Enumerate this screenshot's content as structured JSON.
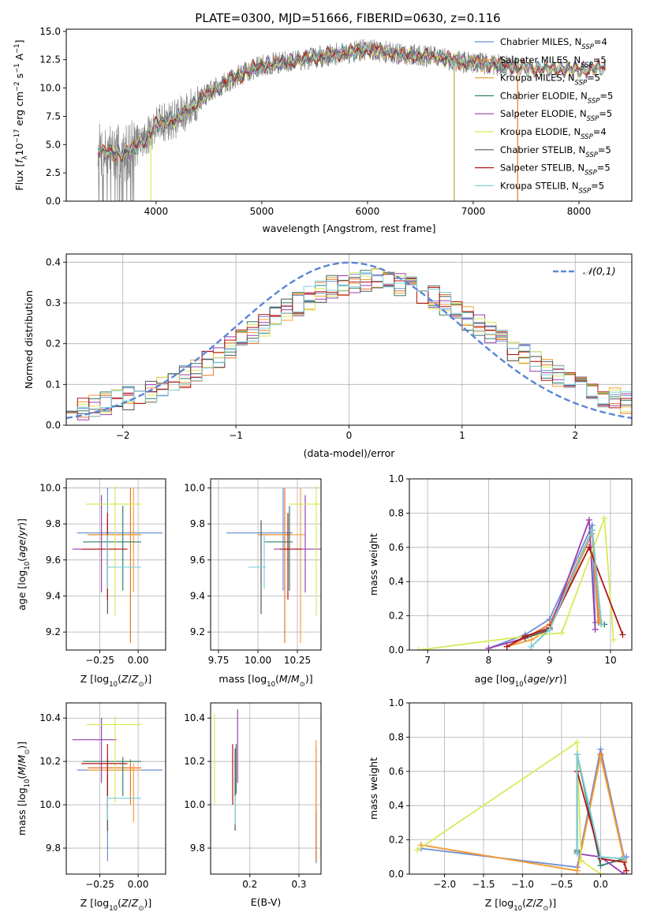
{
  "figure": {
    "title": "PLATE=0300, MJD=51666, FIBERID=0630, z=0.116"
  },
  "models": [
    {
      "name": "Chabrier MILES",
      "nssp": "4",
      "color": "#6b8fd6"
    },
    {
      "name": "Salpeter MILES",
      "nssp": "5",
      "color": "#e8742a"
    },
    {
      "name": "Kroupa MILES",
      "nssp": "5",
      "color": "#f2a03a"
    },
    {
      "name": "Chabrier ELODIE",
      "nssp": "5",
      "color": "#2f7f6a"
    },
    {
      "name": "Salpeter ELODIE",
      "nssp": "5",
      "color": "#9a3fb0"
    },
    {
      "name": "Kroupa ELODIE",
      "nssp": "4",
      "color": "#d8ea5a"
    },
    {
      "name": "Chabrier STELIB",
      "nssp": "5",
      "color": "#555555"
    },
    {
      "name": "Salpeter STELIB",
      "nssp": "5",
      "color": "#b01515"
    },
    {
      "name": "Kroupa STELIB",
      "nssp": "5",
      "color": "#7fd0dc"
    }
  ],
  "chart_data": [
    {
      "id": "spectrum",
      "type": "line",
      "xlabel": "wavelength [Angstrom, rest frame]",
      "ylabel": "Flux [f_λ10^-17 erg cm^-2 s^-1 A^-1]",
      "xlim": [
        3150,
        8500
      ],
      "ylim": [
        0,
        15.2
      ],
      "xticks": [
        4000,
        5000,
        6000,
        7000,
        8000
      ],
      "yticks": [
        0.0,
        2.5,
        5.0,
        7.5,
        10.0,
        12.5,
        15.0
      ],
      "grid": false,
      "legend": "right",
      "data_color": "#808080",
      "data_range": [
        3450,
        7420
      ],
      "model_range": [
        3450,
        8250
      ],
      "continuum": [
        [
          3450,
          4.4
        ],
        [
          3700,
          4.2
        ],
        [
          3900,
          5.5
        ],
        [
          4000,
          6.8
        ],
        [
          4200,
          7.3
        ],
        [
          4500,
          9.6
        ],
        [
          4800,
          11.2
        ],
        [
          5000,
          12.0
        ],
        [
          5300,
          12.4
        ],
        [
          5700,
          13.0
        ],
        [
          6000,
          13.4
        ],
        [
          6300,
          13.0
        ],
        [
          6600,
          12.8
        ],
        [
          6900,
          12.3
        ],
        [
          7200,
          12.1
        ],
        [
          7500,
          11.8
        ],
        [
          8000,
          11.6
        ],
        [
          8250,
          11.8
        ]
      ],
      "drops": [
        3950,
        6820,
        7420
      ]
    },
    {
      "id": "residuals",
      "type": "line",
      "xlabel": "(data-model)/error",
      "ylabel": "Normed distribution",
      "xlim": [
        -2.5,
        2.5
      ],
      "ylim": [
        0,
        0.42
      ],
      "xticks": [
        -2,
        -1,
        0,
        1,
        2
      ],
      "yticks": [
        0.0,
        0.1,
        0.2,
        0.3,
        0.4
      ],
      "grid": true,
      "legend": "top-right",
      "gaussian_label": "𝒩(0,1)",
      "gaussian_color": "#5a86d6",
      "bin_width": 0.1
    },
    {
      "id": "age-vs-Z",
      "type": "scatter",
      "xlabel": "Z [log10(Z/Z⊙)]",
      "ylabel": "age [log10(age/yr)]",
      "xlim": [
        -0.47,
        0.18
      ],
      "ylim": [
        9.1,
        10.05
      ],
      "xticks": [
        -0.25,
        0.0
      ],
      "yticks": [
        9.2,
        9.4,
        9.6,
        9.8,
        10.0
      ],
      "grid": true,
      "points": [
        {
          "x": -0.2,
          "xerr": [
            0.2,
            0.36
          ],
          "y": 9.75,
          "yerr": [
            0.32,
            0.25
          ]
        },
        {
          "x": -0.05,
          "xerr": [
            0.28,
            0.07
          ],
          "y": 9.74,
          "yerr": [
            0.6,
            0.26
          ]
        },
        {
          "x": -0.03,
          "xerr": [
            0.3,
            0.05
          ],
          "y": 9.74,
          "yerr": [
            0.32,
            0.26
          ]
        },
        {
          "x": -0.1,
          "xerr": [
            0.26,
            0.12
          ],
          "y": 9.7,
          "yerr": [
            0.27,
            0.2
          ]
        },
        {
          "x": -0.24,
          "xerr": [
            0.19,
            0.1
          ],
          "y": 9.66,
          "yerr": [
            0.24,
            0.3
          ]
        },
        {
          "x": -0.15,
          "xerr": [
            0.19,
            0.17
          ],
          "y": 9.91,
          "yerr": [
            0.62,
            0.1
          ]
        },
        {
          "x": -0.2,
          "xerr": [
            0.0,
            0.0
          ],
          "y": 9.58,
          "yerr": [
            0.28,
            0.24
          ]
        },
        {
          "x": -0.2,
          "xerr": [
            0.17,
            0.13
          ],
          "y": 9.66,
          "yerr": [
            0.28,
            0.2
          ]
        },
        {
          "x": -0.2,
          "xerr": [
            0.0,
            0.22
          ],
          "y": 9.56,
          "yerr": [
            0.12,
            0.18
          ]
        }
      ]
    },
    {
      "id": "age-vs-mass",
      "type": "scatter",
      "xlabel": "mass [log10(M/M⊙)]",
      "ylabel": "",
      "xlim": [
        9.7,
        10.4
      ],
      "ylim": [
        9.1,
        10.05
      ],
      "xticks": [
        9.75,
        10.0,
        10.25
      ],
      "yticks": [
        9.2,
        9.4,
        9.6,
        9.8,
        10.0
      ],
      "grid": true,
      "points": [
        {
          "x": 10.16,
          "xerr": [
            0.36,
            0.06
          ],
          "y": 9.75,
          "yerr": [
            0.32,
            0.25
          ]
        },
        {
          "x": 10.17,
          "xerr": [
            0.17,
            0.04
          ],
          "y": 9.74,
          "yerr": [
            0.6,
            0.26
          ]
        },
        {
          "x": 10.27,
          "xerr": [
            0.24,
            0.03
          ],
          "y": 9.74,
          "yerr": [
            0.6,
            0.26
          ]
        },
        {
          "x": 10.2,
          "xerr": [
            0.16,
            0.02
          ],
          "y": 9.7,
          "yerr": [
            0.27,
            0.2
          ]
        },
        {
          "x": 10.3,
          "xerr": [
            0.2,
            0.1
          ],
          "y": 9.66,
          "yerr": [
            0.24,
            0.3
          ]
        },
        {
          "x": 10.37,
          "xerr": [
            0.17,
            0.04
          ],
          "y": 9.91,
          "yerr": [
            0.62,
            0.1
          ]
        },
        {
          "x": 10.02,
          "xerr": [
            0.0,
            0.0
          ],
          "y": 9.58,
          "yerr": [
            0.28,
            0.24
          ]
        },
        {
          "x": 10.19,
          "xerr": [
            0.05,
            0.09
          ],
          "y": 9.66,
          "yerr": [
            0.28,
            0.2
          ]
        },
        {
          "x": 10.04,
          "xerr": [
            0.1,
            0.01
          ],
          "y": 9.56,
          "yerr": [
            0.12,
            0.18
          ]
        }
      ]
    },
    {
      "id": "massweight-vs-age",
      "type": "line",
      "xlabel": "age [log10(age/yr)]",
      "ylabel": "mass weight",
      "xlim": [
        6.7,
        10.35
      ],
      "ylim": [
        0,
        1.0
      ],
      "xticks": [
        7,
        8,
        9,
        10
      ],
      "yticks": [
        0.0,
        0.2,
        0.4,
        0.6,
        0.8,
        1.0
      ],
      "grid": true,
      "series": [
        {
          "x": [
            8.0,
            8.6,
            9.0,
            9.7,
            9.75
          ],
          "y": [
            0.01,
            0.09,
            0.18,
            0.73,
            0.16
          ]
        },
        {
          "x": [
            8.3,
            8.6,
            9.0,
            9.7,
            9.8
          ],
          "y": [
            0.02,
            0.07,
            0.15,
            0.7,
            0.16
          ]
        },
        {
          "x": [
            8.3,
            8.7,
            9.0,
            9.7,
            9.82
          ],
          "y": [
            0.02,
            0.06,
            0.12,
            0.68,
            0.17
          ]
        },
        {
          "x": [
            8.7,
            9.0,
            9.7,
            9.85,
            9.9
          ],
          "y": [
            0.02,
            0.12,
            0.7,
            0.15,
            0.15
          ]
        },
        {
          "x": [
            8.0,
            8.6,
            9.0,
            9.65,
            9.75
          ],
          "y": [
            0.01,
            0.07,
            0.12,
            0.76,
            0.12
          ]
        },
        {
          "x": [
            6.85,
            8.6,
            9.2,
            9.9,
            10.05
          ],
          "y": [
            0.0,
            0.08,
            0.1,
            0.77,
            0.06
          ]
        },
        {
          "x": [
            8.6,
            9.0,
            9.7,
            9.85
          ],
          "y": [
            0.07,
            0.12,
            0.7,
            0.15
          ]
        },
        {
          "x": [
            8.3,
            8.6,
            9.0,
            9.65,
            10.2
          ],
          "y": [
            0.02,
            0.08,
            0.13,
            0.6,
            0.09
          ]
        },
        {
          "x": [
            8.7,
            9.0,
            9.7,
            9.85
          ],
          "y": [
            0.02,
            0.12,
            0.7,
            0.15
          ]
        }
      ]
    },
    {
      "id": "mass-vs-Z",
      "type": "scatter",
      "xlabel": "Z [log10(Z/Z⊙)]",
      "ylabel": "mass [log10(M/M⊙)]",
      "xlim": [
        -0.47,
        0.18
      ],
      "ylim": [
        9.68,
        10.47
      ],
      "xticks": [
        -0.25,
        0.0
      ],
      "yticks": [
        9.8,
        10.0,
        10.2,
        10.4
      ],
      "grid": true,
      "points": [
        {
          "x": -0.2,
          "xerr": [
            0.2,
            0.36
          ],
          "y": 10.16,
          "yerr": [
            0.42,
            0.06
          ]
        },
        {
          "x": -0.05,
          "xerr": [
            0.28,
            0.07
          ],
          "y": 10.17,
          "yerr": [
            0.17,
            0.04
          ]
        },
        {
          "x": -0.03,
          "xerr": [
            0.3,
            0.05
          ],
          "y": 10.16,
          "yerr": [
            0.24,
            0.03
          ]
        },
        {
          "x": -0.1,
          "xerr": [
            0.26,
            0.12
          ],
          "y": 10.2,
          "yerr": [
            0.16,
            0.02
          ]
        },
        {
          "x": -0.24,
          "xerr": [
            0.19,
            0.1
          ],
          "y": 10.3,
          "yerr": [
            0.2,
            0.1
          ]
        },
        {
          "x": -0.15,
          "xerr": [
            0.19,
            0.17
          ],
          "y": 10.37,
          "yerr": [
            0.36,
            0.04
          ]
        },
        {
          "x": -0.2,
          "xerr": [
            0.0,
            0.0
          ],
          "y": 10.02,
          "yerr": [
            0.14,
            0.12
          ]
        },
        {
          "x": -0.2,
          "xerr": [
            0.17,
            0.13
          ],
          "y": 10.19,
          "yerr": [
            0.2,
            0.09
          ]
        },
        {
          "x": -0.2,
          "xerr": [
            0.0,
            0.22
          ],
          "y": 10.03,
          "yerr": [
            0.1,
            0.01
          ]
        }
      ]
    },
    {
      "id": "mass-vs-ebv",
      "type": "scatter",
      "xlabel": "E(B-V)",
      "ylabel": "",
      "xlim": [
        0.12,
        0.345
      ],
      "ylim": [
        9.68,
        10.47
      ],
      "xticks": [
        0.2,
        0.3
      ],
      "yticks": [
        9.8,
        10.0,
        10.2,
        10.4
      ],
      "grid": true,
      "points": [
        {
          "x": 0.335,
          "xerr": [
            0.0,
            0.0
          ],
          "y": 10.16,
          "yerr": [
            0.43,
            0.02
          ]
        },
        {
          "x": 0.335,
          "xerr": [
            0.0,
            0.0
          ],
          "y": 10.17,
          "yerr": [
            0.43,
            0.1
          ]
        },
        {
          "x": 0.335,
          "xerr": [
            0.0,
            0.0
          ],
          "y": 10.27,
          "yerr": [
            0.3,
            0.03
          ]
        },
        {
          "x": 0.172,
          "xerr": [
            0.0,
            0.0
          ],
          "y": 10.2,
          "yerr": [
            0.15,
            0.08
          ]
        },
        {
          "x": 0.175,
          "xerr": [
            0.0,
            0.0
          ],
          "y": 10.3,
          "yerr": [
            0.2,
            0.14
          ]
        },
        {
          "x": 0.128,
          "xerr": [
            0.0,
            0.0
          ],
          "y": 10.2,
          "yerr": [
            0.2,
            0.22
          ]
        },
        {
          "x": 0.17,
          "xerr": [
            0.0,
            0.0
          ],
          "y": 10.1,
          "yerr": [
            0.22,
            0.16
          ]
        },
        {
          "x": 0.165,
          "xerr": [
            0.0,
            0.0
          ],
          "y": 10.2,
          "yerr": [
            0.2,
            0.08
          ]
        },
        {
          "x": 0.17,
          "xerr": [
            0.0,
            0.0
          ],
          "y": 10.03,
          "yerr": [
            0.12,
            0.01
          ]
        }
      ]
    },
    {
      "id": "massweight-vs-Z",
      "type": "line",
      "xlabel": "Z [log10(Z/Z⊙)]",
      "ylabel": "mass weight",
      "xlim": [
        -2.45,
        0.4
      ],
      "ylim": [
        0,
        1.0
      ],
      "xticks": [
        -2.0,
        -1.5,
        -1.0,
        -0.5,
        0.0
      ],
      "yticks": [
        0.0,
        0.2,
        0.4,
        0.6,
        0.8,
        1.0
      ],
      "grid": true,
      "series": [
        {
          "x": [
            -2.3,
            -0.3,
            0.0,
            0.3,
            0.33
          ],
          "y": [
            0.15,
            0.04,
            0.73,
            0.1,
            0.1
          ]
        },
        {
          "x": [
            -2.3,
            -0.3,
            0.0,
            0.3,
            0.33
          ],
          "y": [
            0.17,
            0.02,
            0.7,
            0.09,
            0.02
          ]
        },
        {
          "x": [
            -2.3,
            -0.3,
            0.0,
            0.3,
            0.33
          ],
          "y": [
            0.17,
            0.02,
            0.69,
            0.08,
            0.02
          ]
        },
        {
          "x": [
            -0.3,
            -0.3,
            0.0,
            0.3
          ],
          "y": [
            0.14,
            0.7,
            0.05,
            0.09
          ]
        },
        {
          "x": [
            -0.3,
            0.0,
            0.3
          ],
          "y": [
            0.12,
            0.1,
            0.0
          ]
        },
        {
          "x": [
            -2.35,
            -0.3,
            -0.25,
            0.0
          ],
          "y": [
            0.14,
            0.77,
            0.08,
            0.0
          ]
        },
        {
          "x": [
            -0.3,
            -0.3,
            0.0,
            0.3
          ],
          "y": [
            0.13,
            0.7,
            0.1,
            0.09
          ]
        },
        {
          "x": [
            -0.3,
            0.0,
            0.3,
            0.33
          ],
          "y": [
            0.6,
            0.09,
            0.07,
            0.02
          ]
        },
        {
          "x": [
            -0.3,
            -0.3,
            0.0,
            0.3
          ],
          "y": [
            0.12,
            0.7,
            0.1,
            0.09
          ]
        }
      ]
    }
  ]
}
